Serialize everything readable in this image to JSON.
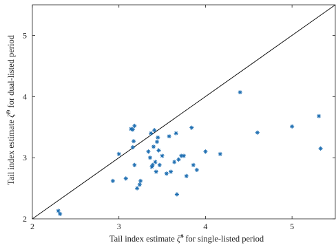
{
  "chart_data": {
    "type": "scatter",
    "title": "",
    "xlabel_main": "Tail index estimate ",
    "xlabel_sym": "ζ̂",
    "xlabel_sup": "S",
    "xlabel_tail": " for single-listed period",
    "ylabel_main": "Tail index estimate ",
    "ylabel_sym": "ζ̂",
    "ylabel_sup": "D",
    "ylabel_tail": " for dual-listed period",
    "xlim": [
      2,
      5.5
    ],
    "ylim": [
      2,
      5.5
    ],
    "xticks": [
      "2",
      "3",
      "4",
      "5"
    ],
    "yticks": [
      "2",
      "3",
      "4",
      "5"
    ],
    "grid": false,
    "reference_line": {
      "from": [
        2,
        2
      ],
      "to": [
        5.5,
        5.5
      ]
    },
    "marker_color": "#1f6fb2",
    "points": [
      {
        "x": 2.3,
        "y": 2.13
      },
      {
        "x": 2.32,
        "y": 2.08
      },
      {
        "x": 2.93,
        "y": 2.62
      },
      {
        "x": 3.0,
        "y": 3.06
      },
      {
        "x": 3.08,
        "y": 2.66
      },
      {
        "x": 3.14,
        "y": 3.47
      },
      {
        "x": 3.16,
        "y": 3.46
      },
      {
        "x": 3.18,
        "y": 3.52
      },
      {
        "x": 3.16,
        "y": 3.17
      },
      {
        "x": 3.17,
        "y": 3.27
      },
      {
        "x": 3.18,
        "y": 2.88
      },
      {
        "x": 3.21,
        "y": 2.5
      },
      {
        "x": 3.24,
        "y": 2.56
      },
      {
        "x": 3.25,
        "y": 2.62
      },
      {
        "x": 3.34,
        "y": 3.1
      },
      {
        "x": 3.36,
        "y": 3.0
      },
      {
        "x": 3.37,
        "y": 3.4
      },
      {
        "x": 3.38,
        "y": 2.85
      },
      {
        "x": 3.39,
        "y": 2.88
      },
      {
        "x": 3.4,
        "y": 3.18
      },
      {
        "x": 3.41,
        "y": 3.45
      },
      {
        "x": 3.42,
        "y": 2.93
      },
      {
        "x": 3.43,
        "y": 2.77
      },
      {
        "x": 3.44,
        "y": 3.26
      },
      {
        "x": 3.45,
        "y": 3.33
      },
      {
        "x": 3.46,
        "y": 3.12
      },
      {
        "x": 3.47,
        "y": 2.88
      },
      {
        "x": 3.5,
        "y": 3.03
      },
      {
        "x": 3.55,
        "y": 2.74
      },
      {
        "x": 3.58,
        "y": 3.35
      },
      {
        "x": 3.6,
        "y": 2.77
      },
      {
        "x": 3.64,
        "y": 2.93
      },
      {
        "x": 3.66,
        "y": 3.4
      },
      {
        "x": 3.67,
        "y": 2.4
      },
      {
        "x": 3.69,
        "y": 2.97
      },
      {
        "x": 3.72,
        "y": 3.03
      },
      {
        "x": 3.75,
        "y": 3.03
      },
      {
        "x": 3.78,
        "y": 2.7
      },
      {
        "x": 3.84,
        "y": 3.49
      },
      {
        "x": 3.86,
        "y": 2.88
      },
      {
        "x": 3.9,
        "y": 2.8
      },
      {
        "x": 4.0,
        "y": 3.1
      },
      {
        "x": 4.17,
        "y": 3.06
      },
      {
        "x": 4.4,
        "y": 4.07
      },
      {
        "x": 4.6,
        "y": 3.41
      },
      {
        "x": 5.0,
        "y": 3.51
      },
      {
        "x": 5.31,
        "y": 3.68
      },
      {
        "x": 5.33,
        "y": 3.15
      }
    ]
  }
}
